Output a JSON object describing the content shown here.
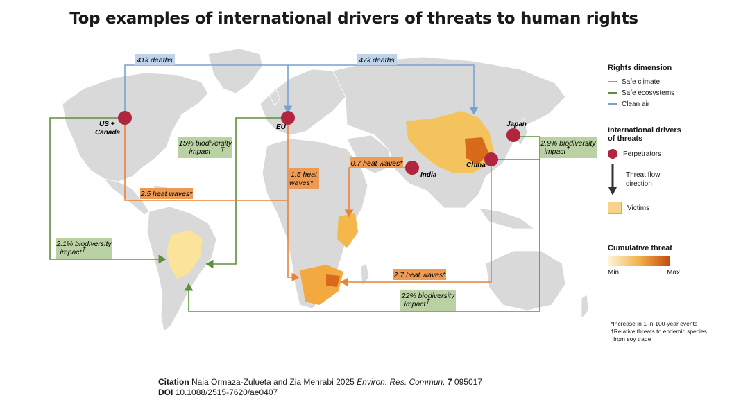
{
  "title": "Top examples of international drivers of threats to human rights",
  "legend": {
    "rights_heading": "Rights dimension",
    "rights": [
      {
        "label": "Safe climate",
        "color": "#e8843a"
      },
      {
        "label": "Safe ecosystems",
        "color": "#5e8f3c"
      },
      {
        "label": "Clean air",
        "color": "#7aa2cf"
      }
    ],
    "drivers_heading_1": "International drivers",
    "drivers_heading_2": "of threats",
    "perpetrators": "Perpetrators",
    "flow_1": "Threat flow",
    "flow_2": "direction",
    "victims": "Victims",
    "cumulative_heading": "Cumulative threat",
    "min": "Min",
    "max": "Max"
  },
  "perpetrators": {
    "us": "US +",
    "us2": "Canada",
    "eu": "EU",
    "india": "India",
    "china": "China",
    "japan": "Japan"
  },
  "flows": {
    "air_41k": "41k deaths",
    "air_47k": "47k deaths",
    "bio_15_1": "15% biodiversity",
    "bio_15_2": "impact",
    "bio_29_1": "2.9% biodiversity",
    "bio_29_2": "impact",
    "bio_21_1": "2.1% biodiversity",
    "bio_21_2": "impact",
    "bio_22_1": "22% biodiversity",
    "bio_22_2": "impact",
    "heat_25": "2.5 heat waves*",
    "heat_15_1": "1.5 heat",
    "heat_15_2": "waves*",
    "heat_07": "0.7 heat waves*",
    "heat_27": "2.7 heat waves*",
    "dagger": "†"
  },
  "footnotes": {
    "line1": "*Increase in 1-in-100-year events",
    "line2": "†Relative threats to endemic species",
    "line3": "from soy trade"
  },
  "citation": {
    "label": "Citation",
    "authors": "Naia Ormaza-Zulueta and Zia Mehrabi 2025",
    "journal": "Environ. Res. Commun.",
    "volume": "7",
    "number": "095017",
    "doi_label": "DOI",
    "doi": "10.1088/2515-7620/ae0407"
  },
  "colors": {
    "land": "#d9d9d9",
    "climate": "#e8843a",
    "ecosystems": "#5e8f3c",
    "air": "#7aa2cf",
    "perpetrator": "#b0263f"
  }
}
